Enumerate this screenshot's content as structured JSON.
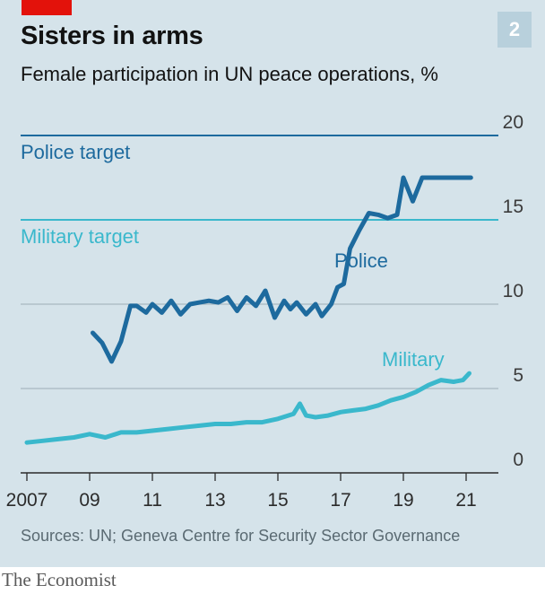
{
  "header": {
    "title": "Sisters in arms",
    "subtitle": "Female participation in UN peace operations, %",
    "chart_number": "2"
  },
  "footer": {
    "source": "Sources: UN; Geneva Centre for Security Sector Governance",
    "brand": "The Economist"
  },
  "colors": {
    "background": "#d5e3ea",
    "police": "#1d6a9e",
    "military": "#3ab8cc",
    "accent_red": "#e3120b",
    "gridline": "#a9b8c0"
  },
  "chart_data": {
    "type": "line",
    "title": "Sisters in arms",
    "subtitle": "Female participation in UN peace operations, %",
    "x_tick_labels": [
      "2007",
      "09",
      "11",
      "13",
      "15",
      "17",
      "19",
      "21"
    ],
    "x_ticks": [
      2007,
      2009,
      2011,
      2013,
      2015,
      2017,
      2019,
      2021
    ],
    "xlim": [
      2006.8,
      2022.6
    ],
    "y_tick_labels": [
      "0",
      "5",
      "10",
      "15",
      "20"
    ],
    "y_ticks": [
      0,
      5,
      10,
      15,
      20
    ],
    "ylim": [
      0,
      20
    ],
    "y_axis_side": "right",
    "grid": true,
    "series": [
      {
        "name": "Police",
        "color": "#1d6a9e",
        "x": [
          2009.1,
          2009.4,
          2009.7,
          2010.0,
          2010.3,
          2010.5,
          2010.8,
          2011.0,
          2011.3,
          2011.6,
          2011.9,
          2012.2,
          2012.5,
          2012.8,
          2013.1,
          2013.4,
          2013.7,
          2014.0,
          2014.3,
          2014.6,
          2014.9,
          2015.2,
          2015.4,
          2015.6,
          2015.9,
          2016.2,
          2016.4,
          2016.7,
          2016.9,
          2017.1,
          2017.3,
          2017.6,
          2017.9,
          2018.2,
          2018.5,
          2018.8,
          2019.0,
          2019.3,
          2019.6,
          2020.0,
          2020.4,
          2020.7,
          2020.9,
          2021.05,
          2021.15
        ],
        "values": [
          8.3,
          7.7,
          6.6,
          7.8,
          9.9,
          9.9,
          9.5,
          10.0,
          9.5,
          10.2,
          9.4,
          10.0,
          10.1,
          10.2,
          10.1,
          10.4,
          9.6,
          10.4,
          9.9,
          10.8,
          9.2,
          10.2,
          9.7,
          10.1,
          9.4,
          10.0,
          9.3,
          10.0,
          11.0,
          11.2,
          13.3,
          14.4,
          15.4,
          15.3,
          15.1,
          15.3,
          17.5,
          16.1,
          17.5,
          17.5,
          17.5,
          17.5,
          17.5,
          17.5,
          17.5
        ]
      },
      {
        "name": "Military",
        "color": "#3ab8cc",
        "x": [
          2007.0,
          2007.5,
          2008.0,
          2008.5,
          2009.0,
          2009.5,
          2010.0,
          2010.5,
          2011.0,
          2011.5,
          2012.0,
          2012.5,
          2013.0,
          2013.5,
          2014.0,
          2014.5,
          2015.0,
          2015.5,
          2015.7,
          2015.9,
          2016.2,
          2016.6,
          2017.0,
          2017.4,
          2017.8,
          2018.2,
          2018.6,
          2019.0,
          2019.4,
          2019.8,
          2020.2,
          2020.6,
          2020.9,
          2021.1
        ],
        "values": [
          1.8,
          1.9,
          2.0,
          2.1,
          2.3,
          2.1,
          2.4,
          2.4,
          2.5,
          2.6,
          2.7,
          2.8,
          2.9,
          2.9,
          3.0,
          3.0,
          3.2,
          3.5,
          4.1,
          3.4,
          3.3,
          3.4,
          3.6,
          3.7,
          3.8,
          4.0,
          4.3,
          4.5,
          4.8,
          5.2,
          5.5,
          5.4,
          5.5,
          5.9
        ]
      }
    ],
    "reference_lines": [
      {
        "label": "Police target",
        "value": 20,
        "color": "#1d6a9e"
      },
      {
        "label": "Military target",
        "value": 15,
        "color": "#3ab8cc"
      }
    ],
    "annotations": [
      {
        "text": "Police",
        "series": "Police"
      },
      {
        "text": "Military",
        "series": "Military"
      }
    ]
  }
}
